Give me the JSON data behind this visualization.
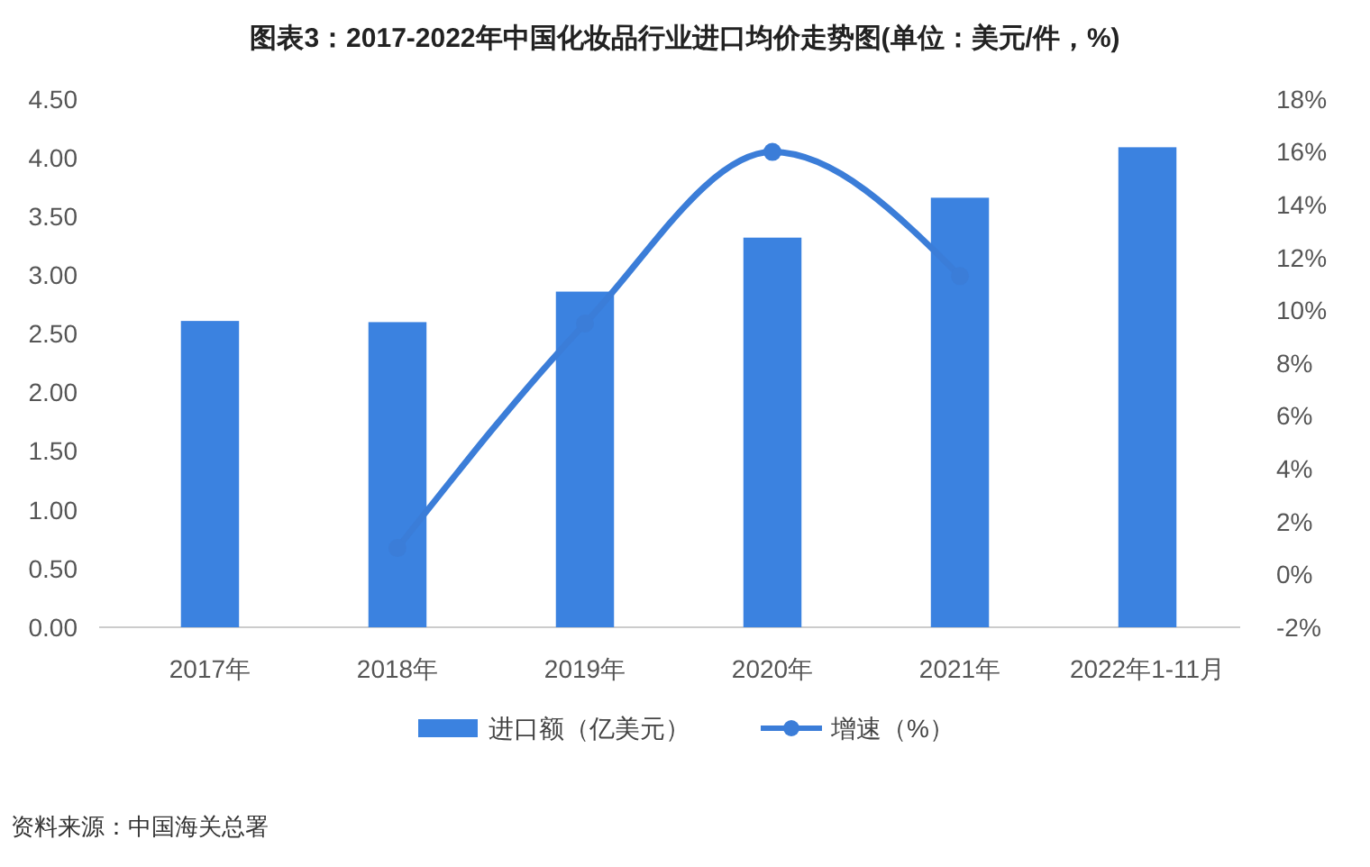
{
  "chart_data": {
    "type": "bar",
    "title": "图表3：2017-2022年中国化妆品行业进口均价走势图(单位：美元/件，%)",
    "categories": [
      "2017年",
      "2018年",
      "2019年",
      "2020年",
      "2021年",
      "2022年1-11月"
    ],
    "series": [
      {
        "name": "进口额（亿美元）",
        "color": "#3b82e0",
        "values": [
          2.61,
          2.6,
          2.86,
          3.32,
          3.66,
          4.09
        ]
      },
      {
        "name": "增速（%）",
        "type": "line",
        "axis": "y2",
        "color": "#3b7dd8",
        "marker": "circle",
        "values": [
          null,
          1.0,
          9.5,
          16.0,
          11.3,
          null
        ]
      }
    ],
    "ylim": [
      0,
      4.5
    ],
    "yticks": [
      {
        "value": 0,
        "label": "0.00"
      },
      {
        "value": 0.5,
        "label": "0.50"
      },
      {
        "value": 1,
        "label": "1.00"
      },
      {
        "value": 1.5,
        "label": "1.50"
      },
      {
        "value": 2,
        "label": "2.00"
      },
      {
        "value": 2.5,
        "label": "2.50"
      },
      {
        "value": 3,
        "label": "3.00"
      },
      {
        "value": 3.5,
        "label": "3.50"
      },
      {
        "value": 4,
        "label": "4.00"
      },
      {
        "value": 4.5,
        "label": "4.50"
      }
    ],
    "y2lim": [
      -2,
      18
    ],
    "y2ticks": [
      {
        "value": -2,
        "label": "-2%"
      },
      {
        "value": 0,
        "label": "0%"
      },
      {
        "value": 2,
        "label": "2%"
      },
      {
        "value": 4,
        "label": "4%"
      },
      {
        "value": 6,
        "label": "6%"
      },
      {
        "value": 8,
        "label": "8%"
      },
      {
        "value": 10,
        "label": "10%"
      },
      {
        "value": 12,
        "label": "12%"
      },
      {
        "value": 14,
        "label": "14%"
      },
      {
        "value": 16,
        "label": "16%"
      },
      {
        "value": 18,
        "label": "18%"
      }
    ],
    "grid": false,
    "legend": "bottom",
    "annotations": [
      "资料来源：中国海关总署"
    ]
  }
}
